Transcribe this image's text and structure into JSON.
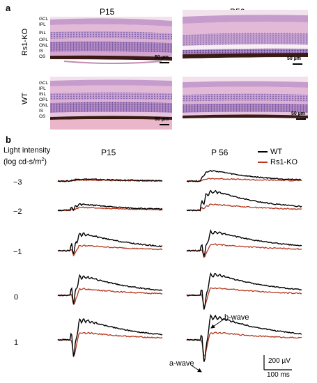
{
  "panel_a": {
    "label": "a",
    "columns": [
      "P15",
      "P56"
    ],
    "rows": [
      "Rs1-KO",
      "WT"
    ],
    "layer_labels": [
      "GCL",
      "IPL",
      "INL",
      "OPL",
      "ONL",
      "IS",
      "OS"
    ],
    "scale_bar": "50 µm",
    "colors": {
      "tissue_pink": "#e8b8d4",
      "nuclei": "#6a4f9a",
      "pigment": "#3a1a12"
    }
  },
  "panel_b": {
    "label": "b",
    "intensity_title_1": "Light intensity",
    "intensity_title_2": "(log cd-s/m",
    "intensity_title_sup": "2",
    "intensity_title_end": ")",
    "columns": [
      "P15",
      "P 56"
    ],
    "intensities": [
      "−3",
      "−2",
      "−1",
      "0",
      "1"
    ],
    "legend": [
      {
        "name": "WT",
        "color": "#000000"
      },
      {
        "name": "Rs1-KO",
        "color": "#b5381f"
      }
    ],
    "annotations": {
      "a_wave": "a-wave",
      "b_wave": "b-wave"
    },
    "scale_voltage": "200 µV",
    "scale_time": "100 ms"
  }
}
